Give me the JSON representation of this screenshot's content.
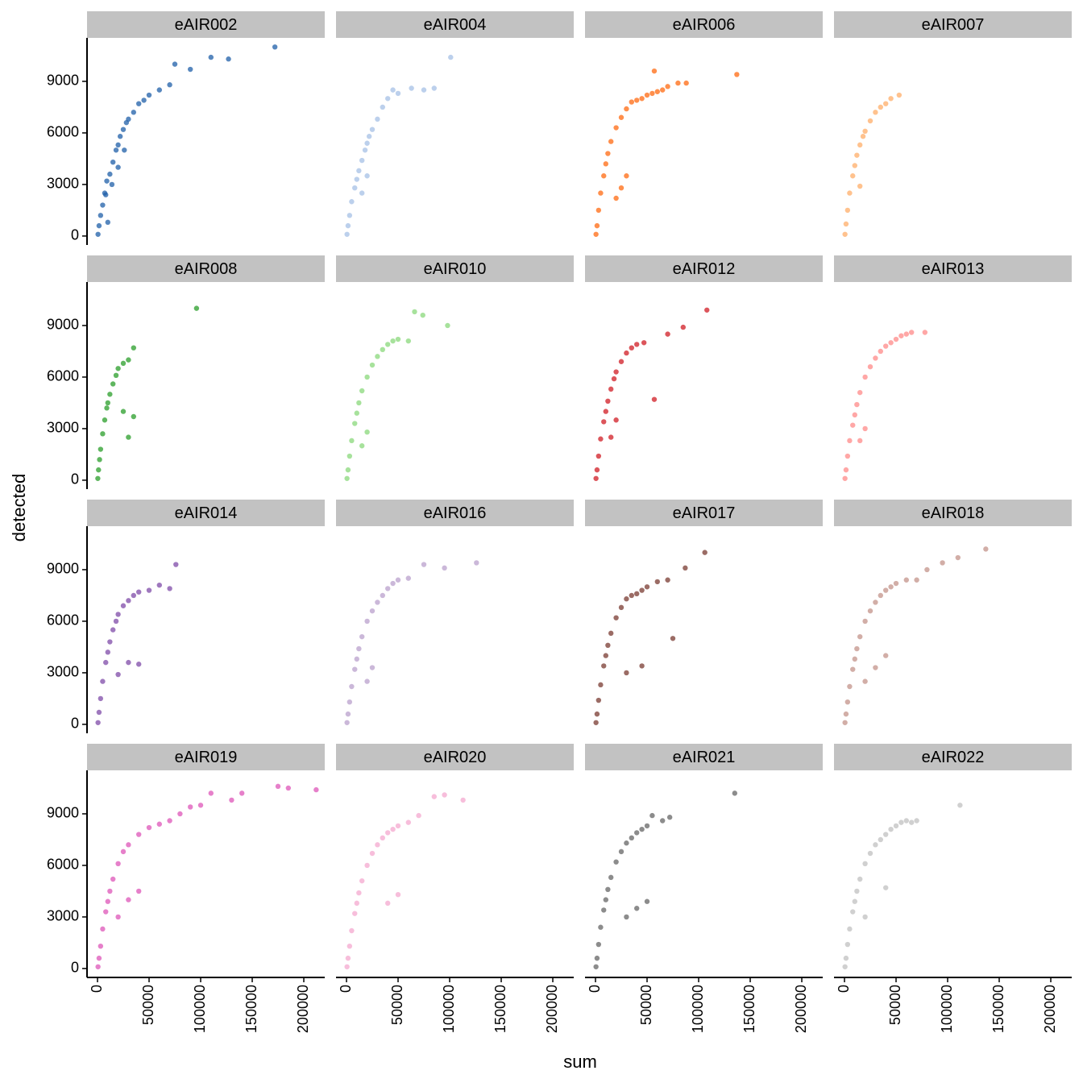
{
  "chart_data": {
    "type": "scatter",
    "xlabel": "sum",
    "ylabel": "detected",
    "xlim": [
      -10160,
      220300
    ],
    "ylim": [
      -520,
      11530
    ],
    "xticks": [
      0,
      50000,
      100000,
      150000,
      200000
    ],
    "yticks": [
      0,
      3000,
      6000,
      9000
    ],
    "facets": [
      {
        "title": "eAIR002",
        "color": "#1f5fa8",
        "x": [
          500,
          1500,
          3000,
          5000,
          7000,
          9000,
          10000,
          12000,
          15000,
          18000,
          20000,
          22000,
          25000,
          28000,
          30000,
          35000,
          40000,
          45000,
          50000,
          60000,
          70000,
          75000,
          90000,
          110000,
          127000,
          172000,
          8000,
          14000,
          20000,
          26000
        ],
        "y": [
          100,
          600,
          1200,
          1800,
          2500,
          3200,
          800,
          3600,
          4300,
          5000,
          5300,
          5800,
          6200,
          6600,
          6800,
          7200,
          7700,
          7900,
          8200,
          8500,
          8800,
          10000,
          9700,
          10400,
          10300,
          11000,
          2400,
          3000,
          4000,
          5000
        ]
      },
      {
        "title": "eAIR004",
        "color": "#a6c0e6",
        "x": [
          500,
          1500,
          3000,
          5000,
          8000,
          10000,
          12000,
          15000,
          18000,
          20000,
          22000,
          25000,
          30000,
          35000,
          40000,
          45000,
          50000,
          63000,
          75000,
          85000,
          101000,
          20000,
          15000
        ],
        "y": [
          100,
          600,
          1200,
          2000,
          2800,
          3300,
          3800,
          4400,
          5000,
          5400,
          5800,
          6200,
          6800,
          7500,
          8000,
          8500,
          8300,
          8600,
          8500,
          8600,
          10400,
          3500,
          2500
        ]
      },
      {
        "title": "eAIR006",
        "color": "#ff6a10",
        "x": [
          500,
          1500,
          3000,
          5000,
          8000,
          10000,
          12000,
          15000,
          20000,
          25000,
          30000,
          35000,
          40000,
          45000,
          50000,
          55000,
          60000,
          65000,
          70000,
          80000,
          88000,
          137000,
          57000,
          20000,
          25000,
          30000
        ],
        "y": [
          100,
          600,
          1500,
          2500,
          3500,
          4200,
          4800,
          5500,
          6300,
          6900,
          7400,
          7800,
          7900,
          8000,
          8200,
          8300,
          8400,
          8500,
          8700,
          8900,
          8900,
          9400,
          9600,
          2200,
          2800,
          3500
        ]
      },
      {
        "title": "eAIR007",
        "color": "#ffad68",
        "x": [
          500,
          1500,
          3000,
          5000,
          8000,
          10000,
          12000,
          15000,
          18000,
          20000,
          25000,
          30000,
          35000,
          40000,
          45000,
          53000,
          15000
        ],
        "y": [
          100,
          700,
          1500,
          2500,
          3500,
          4100,
          4700,
          5300,
          5800,
          6100,
          6700,
          7200,
          7500,
          7700,
          8000,
          8200,
          2900
        ]
      },
      {
        "title": "eAIR008",
        "color": "#2a9d2a",
        "x": [
          300,
          1000,
          2000,
          3000,
          5000,
          7000,
          9000,
          10000,
          12000,
          15000,
          18000,
          20000,
          25000,
          30000,
          35000,
          96000,
          30000,
          35000,
          25000
        ],
        "y": [
          100,
          600,
          1200,
          1800,
          2700,
          3500,
          4200,
          4500,
          5000,
          5600,
          6100,
          6500,
          6800,
          7000,
          7700,
          10000,
          2500,
          3700,
          4000
        ]
      },
      {
        "title": "eAIR010",
        "color": "#8ad87b",
        "x": [
          500,
          1500,
          3000,
          5000,
          8000,
          10000,
          12000,
          15000,
          20000,
          25000,
          30000,
          35000,
          40000,
          45000,
          50000,
          60000,
          66000,
          74000,
          98000,
          20000,
          15000
        ],
        "y": [
          100,
          600,
          1400,
          2300,
          3300,
          3900,
          4500,
          5200,
          6000,
          6700,
          7200,
          7600,
          7900,
          8100,
          8200,
          8100,
          9800,
          9600,
          9000,
          2800,
          2000
        ]
      },
      {
        "title": "eAIR012",
        "color": "#d01c24",
        "x": [
          500,
          1500,
          3000,
          5000,
          8000,
          10000,
          12000,
          15000,
          18000,
          20000,
          25000,
          30000,
          35000,
          40000,
          47000,
          57000,
          70000,
          85000,
          108000,
          15000,
          20000
        ],
        "y": [
          100,
          600,
          1400,
          2400,
          3400,
          4000,
          4600,
          5300,
          5900,
          6300,
          6900,
          7400,
          7700,
          7900,
          8000,
          4700,
          8500,
          8900,
          9900,
          2500,
          3500
        ]
      },
      {
        "title": "eAIR013",
        "color": "#ff8a88",
        "x": [
          500,
          1500,
          3000,
          5000,
          8000,
          10000,
          12000,
          15000,
          20000,
          25000,
          30000,
          35000,
          40000,
          45000,
          50000,
          55000,
          60000,
          65000,
          78000,
          15000,
          20000
        ],
        "y": [
          100,
          600,
          1400,
          2300,
          3200,
          3800,
          4400,
          5100,
          6000,
          6600,
          7100,
          7500,
          7800,
          8000,
          8200,
          8400,
          8500,
          8600,
          8600,
          2300,
          3000
        ]
      },
      {
        "title": "eAIR014",
        "color": "#7f4ba8",
        "x": [
          500,
          1500,
          3000,
          5000,
          8000,
          10000,
          12000,
          15000,
          18000,
          20000,
          25000,
          30000,
          35000,
          40000,
          50000,
          60000,
          70000,
          76000,
          20000,
          30000,
          40000
        ],
        "y": [
          100,
          700,
          1500,
          2500,
          3600,
          4200,
          4800,
          5500,
          6000,
          6400,
          6900,
          7200,
          7500,
          7700,
          7800,
          8100,
          7900,
          9300,
          2900,
          3600,
          3500
        ]
      },
      {
        "title": "eAIR016",
        "color": "#b9a0cc",
        "x": [
          500,
          1500,
          3000,
          5000,
          8000,
          10000,
          12000,
          15000,
          20000,
          25000,
          30000,
          35000,
          40000,
          45000,
          50000,
          60000,
          75000,
          95000,
          126000,
          20000,
          25000
        ],
        "y": [
          100,
          600,
          1300,
          2200,
          3200,
          3800,
          4400,
          5100,
          6000,
          6600,
          7100,
          7500,
          7900,
          8200,
          8400,
          8500,
          9300,
          9100,
          9400,
          2500,
          3300
        ]
      },
      {
        "title": "eAIR017",
        "color": "#7a3b32",
        "x": [
          500,
          1500,
          3000,
          5000,
          8000,
          10000,
          12000,
          15000,
          20000,
          25000,
          30000,
          35000,
          40000,
          45000,
          50000,
          60000,
          70000,
          75000,
          87000,
          106000,
          45000,
          30000
        ],
        "y": [
          100,
          600,
          1400,
          2300,
          3400,
          4000,
          4600,
          5300,
          6200,
          6800,
          7300,
          7500,
          7600,
          7800,
          8000,
          8300,
          8400,
          5000,
          9100,
          10000,
          3400,
          3000
        ]
      },
      {
        "title": "eAIR018",
        "color": "#c39389",
        "x": [
          500,
          1500,
          3000,
          5000,
          8000,
          10000,
          12000,
          15000,
          20000,
          25000,
          30000,
          35000,
          40000,
          45000,
          50000,
          60000,
          70000,
          80000,
          95000,
          110000,
          137000,
          20000,
          30000,
          40000
        ],
        "y": [
          100,
          600,
          1300,
          2200,
          3200,
          3800,
          4400,
          5100,
          6000,
          6600,
          7100,
          7500,
          7800,
          8000,
          8200,
          8400,
          8400,
          9000,
          9400,
          9700,
          10200,
          2500,
          3300,
          4000
        ]
      },
      {
        "title": "eAIR019",
        "color": "#dd55b8",
        "x": [
          500,
          1500,
          3000,
          5000,
          8000,
          10000,
          12000,
          15000,
          20000,
          25000,
          30000,
          40000,
          50000,
          60000,
          70000,
          80000,
          90000,
          100000,
          110000,
          130000,
          140000,
          175000,
          185000,
          212000,
          20000,
          30000,
          40000
        ],
        "y": [
          100,
          600,
          1300,
          2300,
          3300,
          3900,
          4500,
          5200,
          6100,
          6800,
          7200,
          7800,
          8200,
          8400,
          8600,
          9000,
          9400,
          9500,
          10200,
          9800,
          10200,
          10600,
          10500,
          10400,
          3000,
          4000,
          4500
        ]
      },
      {
        "title": "eAIR020",
        "color": "#f4a8cf",
        "x": [
          500,
          1500,
          3000,
          5000,
          8000,
          10000,
          12000,
          15000,
          20000,
          25000,
          30000,
          35000,
          40000,
          45000,
          50000,
          60000,
          70000,
          85000,
          95000,
          113000,
          40000,
          50000
        ],
        "y": [
          100,
          600,
          1300,
          2200,
          3200,
          3800,
          4400,
          5100,
          6000,
          6700,
          7200,
          7600,
          7900,
          8100,
          8300,
          8500,
          8900,
          10000,
          10100,
          9800,
          3800,
          4300
        ]
      },
      {
        "title": "eAIR021",
        "color": "#656565",
        "x": [
          500,
          1500,
          3000,
          5000,
          8000,
          10000,
          12000,
          15000,
          20000,
          25000,
          30000,
          35000,
          40000,
          45000,
          50000,
          55000,
          65000,
          72000,
          135000,
          50000,
          30000,
          40000
        ],
        "y": [
          100,
          600,
          1400,
          2400,
          3400,
          4000,
          4600,
          5300,
          6200,
          6800,
          7300,
          7600,
          7900,
          8100,
          8300,
          8900,
          8600,
          8800,
          10200,
          3900,
          3000,
          3500
        ]
      },
      {
        "title": "eAIR022",
        "color": "#c0c0c0",
        "x": [
          500,
          1500,
          3000,
          5000,
          8000,
          10000,
          12000,
          15000,
          20000,
          25000,
          30000,
          35000,
          40000,
          45000,
          50000,
          55000,
          60000,
          65000,
          70000,
          112000,
          40000,
          20000
        ],
        "y": [
          100,
          600,
          1400,
          2300,
          3300,
          3900,
          4500,
          5200,
          6100,
          6700,
          7200,
          7500,
          7800,
          8100,
          8300,
          8500,
          8600,
          8500,
          8600,
          9500,
          4700,
          3000
        ]
      }
    ]
  }
}
